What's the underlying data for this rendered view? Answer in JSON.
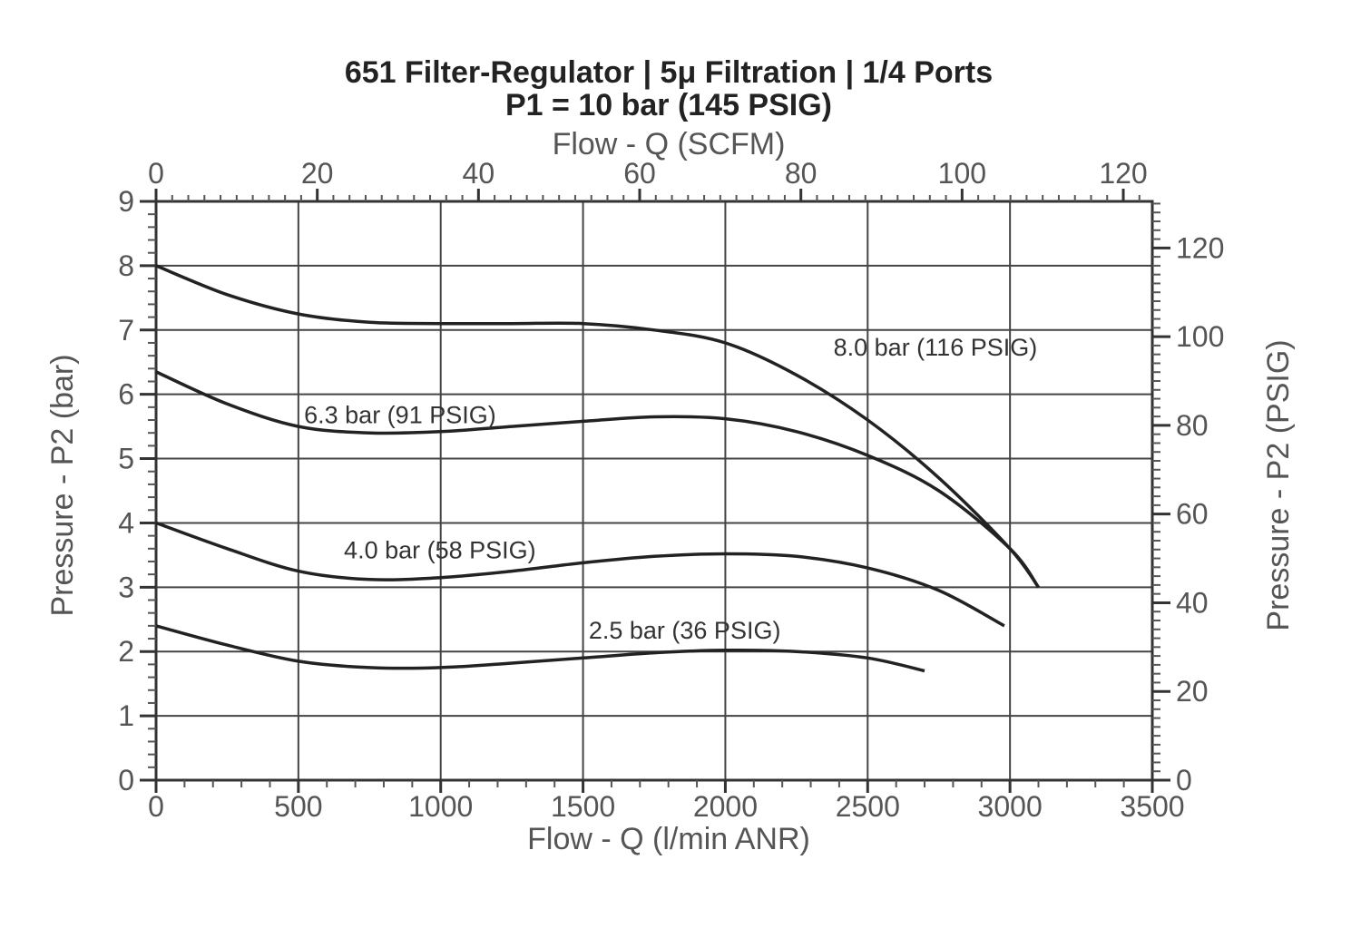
{
  "chart_data": {
    "type": "line",
    "title": "651 Filter-Regulator | 5μ Filtration | 1/4 Ports",
    "subtitle": "P1 = 10 bar (145 PSIG)",
    "xlabel": "Flow - Q (l/min ANR)",
    "xlabel_top": "Flow - Q (SCFM)",
    "ylabel": "Pressure - P2 (bar)",
    "ylabel_right": "Pressure - P2 (PSIG)",
    "xlim": [
      0,
      3500
    ],
    "ylim": [
      0,
      9
    ],
    "x2lim": [
      0,
      123.6
    ],
    "y2lim": [
      0,
      130.5
    ],
    "x_ticks": [
      0,
      500,
      1000,
      1500,
      2000,
      2500,
      3000,
      3500
    ],
    "y_ticks": [
      0,
      1,
      2,
      3,
      4,
      5,
      6,
      7,
      8,
      9
    ],
    "x2_ticks": [
      0,
      20,
      40,
      60,
      80,
      100,
      120
    ],
    "y2_ticks": [
      0,
      20,
      40,
      60,
      80,
      100,
      120
    ],
    "grid": true,
    "legend": "none",
    "series": [
      {
        "name": "8.0 bar (116 PSIG)",
        "x": [
          0,
          250,
          500,
          750,
          1000,
          1250,
          1500,
          1750,
          2000,
          2250,
          2500,
          2750,
          3000,
          3100
        ],
        "y": [
          8.0,
          7.55,
          7.25,
          7.12,
          7.1,
          7.1,
          7.1,
          7.0,
          6.8,
          6.3,
          5.6,
          4.7,
          3.6,
          3.0
        ]
      },
      {
        "name": "6.3 bar (91 PSIG)",
        "x": [
          0,
          250,
          500,
          750,
          1000,
          1250,
          1500,
          1750,
          2000,
          2250,
          2500,
          2750,
          3000,
          3100
        ],
        "y": [
          6.35,
          5.85,
          5.5,
          5.4,
          5.42,
          5.5,
          5.58,
          5.65,
          5.62,
          5.42,
          5.05,
          4.5,
          3.6,
          3.0
        ]
      },
      {
        "name": "4.0 bar (58 PSIG)",
        "x": [
          0,
          250,
          500,
          750,
          1000,
          1250,
          1500,
          1750,
          2000,
          2250,
          2500,
          2750,
          2980
        ],
        "y": [
          4.0,
          3.6,
          3.25,
          3.12,
          3.15,
          3.25,
          3.38,
          3.48,
          3.52,
          3.48,
          3.3,
          2.95,
          2.4
        ]
      },
      {
        "name": "2.5 bar (36 PSIG)",
        "x": [
          0,
          250,
          500,
          750,
          1000,
          1250,
          1500,
          1750,
          2000,
          2250,
          2500,
          2700
        ],
        "y": [
          2.4,
          2.1,
          1.85,
          1.75,
          1.75,
          1.82,
          1.9,
          1.98,
          2.02,
          2.0,
          1.9,
          1.7
        ]
      }
    ]
  }
}
